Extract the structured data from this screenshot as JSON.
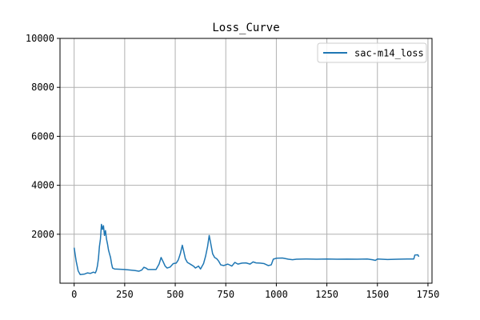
{
  "chart_data": {
    "type": "line",
    "title": "Loss_Curve",
    "xlabel": "",
    "ylabel": "",
    "xlim": [
      -70,
      1770
    ],
    "ylim": [
      0,
      10000
    ],
    "x_ticks": [
      0,
      250,
      500,
      750,
      1000,
      1250,
      1500,
      1750
    ],
    "y_ticks": [
      2000,
      4000,
      6000,
      8000,
      10000
    ],
    "x_tick_labels": [
      "0",
      "250",
      "500",
      "750",
      "1000",
      "1250",
      "1500",
      "1750"
    ],
    "y_tick_labels": [
      "2000",
      "4000",
      "6000",
      "8000",
      "10000"
    ],
    "grid": true,
    "legend": {
      "position": "top-right",
      "entries": [
        "sac-m14_loss"
      ]
    },
    "series": [
      {
        "name": "sac-m14_loss",
        "color": "#1f77b4",
        "points": [
          [
            0,
            1450
          ],
          [
            10,
            900
          ],
          [
            20,
            500
          ],
          [
            30,
            350
          ],
          [
            50,
            370
          ],
          [
            65,
            420
          ],
          [
            80,
            400
          ],
          [
            95,
            450
          ],
          [
            105,
            420
          ],
          [
            110,
            520
          ],
          [
            115,
            700
          ],
          [
            120,
            1000
          ],
          [
            125,
            1500
          ],
          [
            130,
            1800
          ],
          [
            135,
            2400
          ],
          [
            140,
            2200
          ],
          [
            145,
            2350
          ],
          [
            150,
            1950
          ],
          [
            155,
            2150
          ],
          [
            160,
            1800
          ],
          [
            165,
            1600
          ],
          [
            170,
            1350
          ],
          [
            175,
            1200
          ],
          [
            180,
            1050
          ],
          [
            185,
            800
          ],
          [
            190,
            620
          ],
          [
            200,
            580
          ],
          [
            220,
            570
          ],
          [
            250,
            560
          ],
          [
            275,
            540
          ],
          [
            300,
            520
          ],
          [
            320,
            490
          ],
          [
            335,
            540
          ],
          [
            345,
            650
          ],
          [
            355,
            620
          ],
          [
            365,
            560
          ],
          [
            385,
            560
          ],
          [
            405,
            560
          ],
          [
            420,
            780
          ],
          [
            430,
            1050
          ],
          [
            440,
            880
          ],
          [
            450,
            700
          ],
          [
            460,
            620
          ],
          [
            475,
            660
          ],
          [
            490,
            800
          ],
          [
            505,
            820
          ],
          [
            515,
            950
          ],
          [
            525,
            1200
          ],
          [
            535,
            1550
          ],
          [
            542,
            1300
          ],
          [
            550,
            1000
          ],
          [
            560,
            850
          ],
          [
            570,
            800
          ],
          [
            580,
            750
          ],
          [
            590,
            700
          ],
          [
            600,
            620
          ],
          [
            615,
            700
          ],
          [
            625,
            580
          ],
          [
            640,
            800
          ],
          [
            650,
            1100
          ],
          [
            660,
            1500
          ],
          [
            668,
            1950
          ],
          [
            675,
            1650
          ],
          [
            685,
            1200
          ],
          [
            695,
            1050
          ],
          [
            705,
            1000
          ],
          [
            715,
            900
          ],
          [
            725,
            750
          ],
          [
            740,
            720
          ],
          [
            760,
            780
          ],
          [
            780,
            700
          ],
          [
            795,
            850
          ],
          [
            810,
            780
          ],
          [
            830,
            820
          ],
          [
            850,
            830
          ],
          [
            870,
            780
          ],
          [
            885,
            870
          ],
          [
            900,
            830
          ],
          [
            920,
            820
          ],
          [
            940,
            800
          ],
          [
            960,
            720
          ],
          [
            975,
            750
          ],
          [
            985,
            980
          ],
          [
            1000,
            1020
          ],
          [
            1030,
            1030
          ],
          [
            1060,
            980
          ],
          [
            1080,
            960
          ],
          [
            1100,
            980
          ],
          [
            1150,
            990
          ],
          [
            1200,
            980
          ],
          [
            1250,
            990
          ],
          [
            1300,
            980
          ],
          [
            1350,
            985
          ],
          [
            1400,
            980
          ],
          [
            1450,
            990
          ],
          [
            1475,
            960
          ],
          [
            1490,
            930
          ],
          [
            1500,
            990
          ],
          [
            1550,
            970
          ],
          [
            1600,
            980
          ],
          [
            1650,
            990
          ],
          [
            1680,
            990
          ],
          [
            1685,
            1150
          ],
          [
            1700,
            1160
          ],
          [
            1705,
            1080
          ]
        ]
      }
    ]
  }
}
